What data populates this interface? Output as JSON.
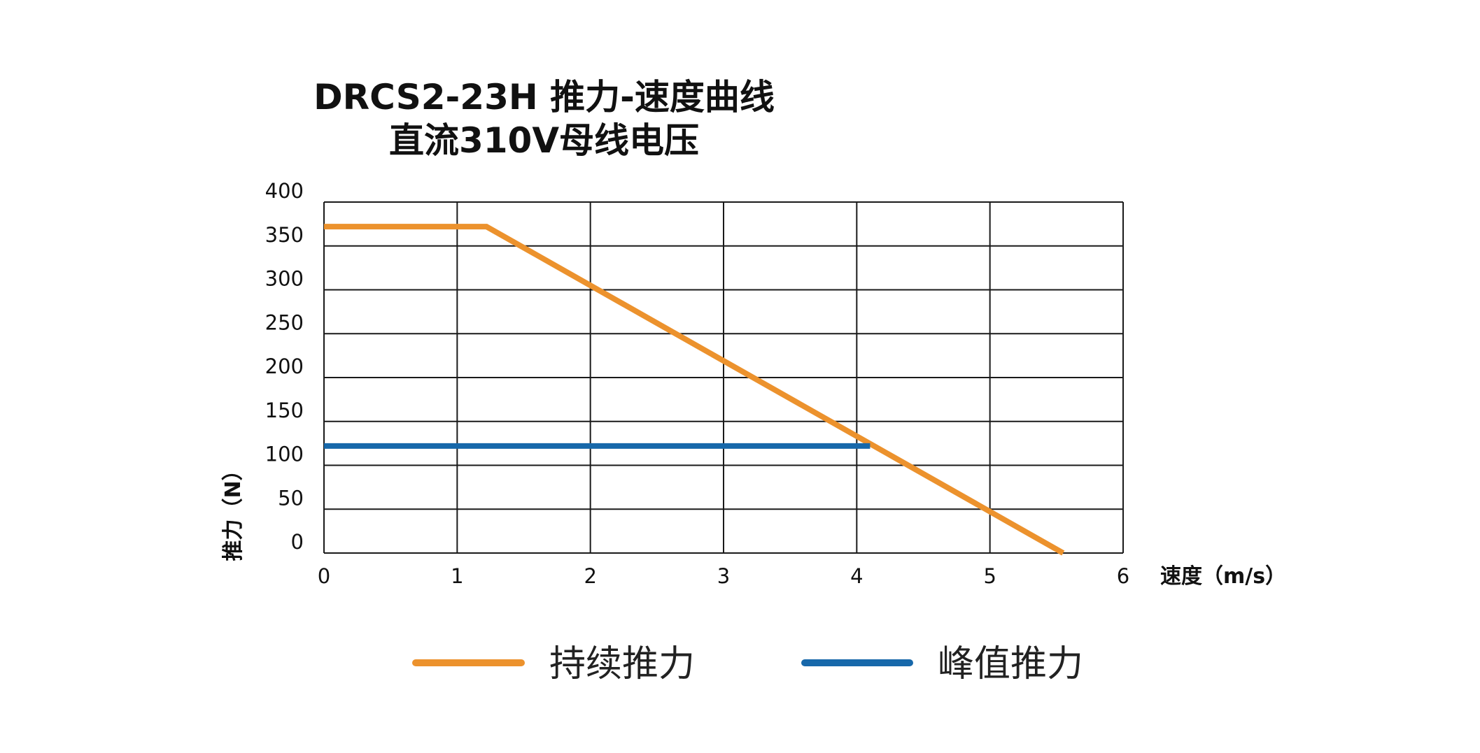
{
  "title": {
    "line1": "DRCS2-23H 推力-速度曲线",
    "line2": "直流310V母线电压"
  },
  "colors": {
    "continuous": "#EC922D",
    "peak": "#1768AA",
    "grid": "#1a1a1a",
    "text": "#111111"
  },
  "chart_data": {
    "type": "line",
    "title": "DRCS2-23H 推力-速度曲线",
    "subtitle": "直流310V母线电压",
    "xlabel": "速度（m/s）",
    "ylabel": "推力（N）",
    "xlim": [
      0,
      6
    ],
    "ylim": [
      0,
      400
    ],
    "xticks": [
      "0",
      "1",
      "2",
      "3",
      "4",
      "5",
      "6"
    ],
    "yticks": [
      "0",
      "50",
      "100",
      "150",
      "200",
      "250",
      "300",
      "350",
      "400"
    ],
    "grid": true,
    "legend_position": "bottom",
    "series": [
      {
        "name": "持续推力",
        "color": "#EC922D",
        "x": [
          0,
          1.22,
          5.55
        ],
        "y": [
          372,
          372,
          0
        ]
      },
      {
        "name": "峰值推力",
        "color": "#1768AA",
        "x": [
          0,
          4.1
        ],
        "y": [
          122,
          122
        ]
      }
    ]
  }
}
